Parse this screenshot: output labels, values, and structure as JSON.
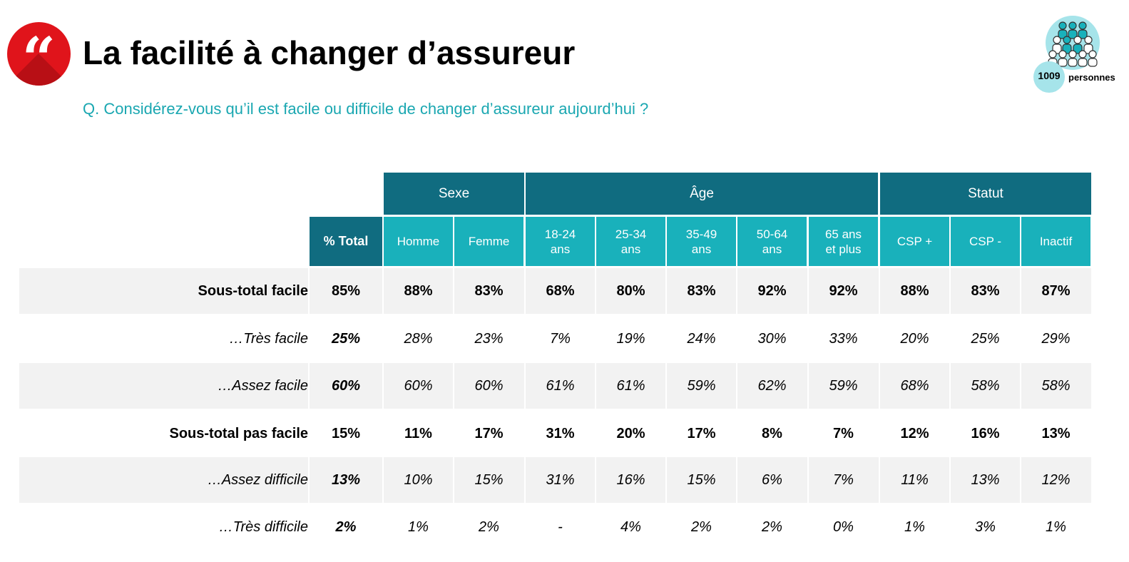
{
  "header": {
    "title": "La facilité à changer d’assureur",
    "question": "Q. Considérez-vous qu’il est facile ou difficile de changer d’assureur aujourd’hui ?",
    "logo_glyph": "“",
    "sample_count": "1009",
    "sample_unit": "personnes"
  },
  "colors": {
    "accent_red": "#e0141b",
    "group_header": "#106c80",
    "col_header": "#19b1bb",
    "question": "#1aa7b1"
  },
  "table": {
    "groups": [
      "Sexe",
      "Âge",
      "Statut"
    ],
    "columns": [
      [
        "% Total"
      ],
      [
        "Homme"
      ],
      [
        "Femme"
      ],
      [
        "18-24",
        "ans"
      ],
      [
        "25-34",
        "ans"
      ],
      [
        "35-49",
        "ans"
      ],
      [
        "50-64",
        "ans"
      ],
      [
        "65 ans",
        "et plus"
      ],
      [
        "CSP +"
      ],
      [
        "CSP -"
      ],
      [
        "Inactif"
      ]
    ],
    "rows": [
      {
        "label": "Sous-total facile",
        "values": [
          "85%",
          "88%",
          "83%",
          "68%",
          "80%",
          "83%",
          "92%",
          "92%",
          "88%",
          "83%",
          "87%"
        ]
      },
      {
        "label": "…Très facile",
        "values": [
          "25%",
          "28%",
          "23%",
          "7%",
          "19%",
          "24%",
          "30%",
          "33%",
          "20%",
          "25%",
          "29%"
        ]
      },
      {
        "label": "…Assez facile",
        "values": [
          "60%",
          "60%",
          "60%",
          "61%",
          "61%",
          "59%",
          "62%",
          "59%",
          "68%",
          "58%",
          "58%"
        ]
      },
      {
        "label": "Sous-total pas facile",
        "values": [
          "15%",
          "11%",
          "17%",
          "31%",
          "20%",
          "17%",
          "8%",
          "7%",
          "12%",
          "16%",
          "13%"
        ]
      },
      {
        "label": "…Assez difficile",
        "values": [
          "13%",
          "10%",
          "15%",
          "31%",
          "16%",
          "15%",
          "6%",
          "7%",
          "11%",
          "13%",
          "12%"
        ]
      },
      {
        "label": "…Très difficile",
        "values": [
          "2%",
          "1%",
          "2%",
          "-",
          "4%",
          "2%",
          "2%",
          "0%",
          "1%",
          "3%",
          "1%"
        ]
      }
    ]
  }
}
